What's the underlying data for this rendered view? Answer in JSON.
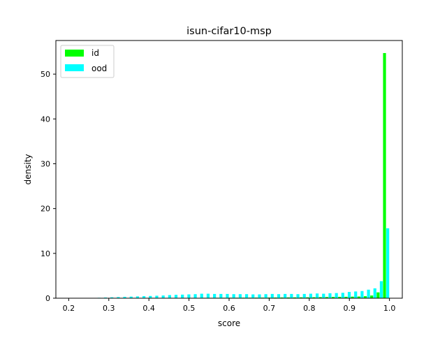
{
  "chart_data": {
    "type": "bar",
    "title": "isun-cifar10-msp",
    "xlabel": "score",
    "ylabel": "density",
    "xlim": [
      0.168,
      1.032
    ],
    "ylim": [
      0,
      57.5
    ],
    "xticks": [
      "0.2",
      "0.3",
      "0.4",
      "0.5",
      "0.6",
      "0.7",
      "0.8",
      "0.9",
      "1.0"
    ],
    "yticks": [
      "0",
      "10",
      "20",
      "30",
      "40",
      "50"
    ],
    "grid": false,
    "legend_position": "upper-left",
    "bin_edges": [
      0.2,
      0.216,
      0.232,
      0.248,
      0.264,
      0.28,
      0.296,
      0.312,
      0.328,
      0.344,
      0.36,
      0.376,
      0.392,
      0.408,
      0.424,
      0.44,
      0.456,
      0.472,
      0.488,
      0.504,
      0.52,
      0.536,
      0.552,
      0.568,
      0.584,
      0.6,
      0.616,
      0.632,
      0.648,
      0.664,
      0.68,
      0.696,
      0.712,
      0.728,
      0.744,
      0.76,
      0.776,
      0.792,
      0.808,
      0.824,
      0.84,
      0.856,
      0.872,
      0.888,
      0.904,
      0.92,
      0.936,
      0.952,
      0.968,
      0.984,
      1.0
    ],
    "series": [
      {
        "name": "id",
        "color": "#00ff00",
        "values": [
          0,
          0,
          0,
          0,
          0,
          0,
          0.01,
          0.01,
          0.02,
          0.02,
          0.03,
          0.03,
          0.04,
          0.04,
          0.05,
          0.05,
          0.06,
          0.06,
          0.07,
          0.08,
          0.08,
          0.09,
          0.09,
          0.1,
          0.1,
          0.11,
          0.11,
          0.12,
          0.12,
          0.13,
          0.13,
          0.14,
          0.15,
          0.16,
          0.17,
          0.18,
          0.19,
          0.2,
          0.22,
          0.24,
          0.26,
          0.28,
          0.3,
          0.32,
          0.35,
          0.38,
          0.45,
          0.6,
          1.3,
          54.7
        ]
      },
      {
        "name": "ood",
        "color": "#00ffff",
        "values": [
          0,
          0,
          0,
          0,
          0.1,
          0.15,
          0.2,
          0.25,
          0.3,
          0.35,
          0.4,
          0.45,
          0.5,
          0.55,
          0.6,
          0.7,
          0.75,
          0.8,
          0.85,
          0.9,
          1.0,
          1.0,
          0.95,
          0.95,
          0.95,
          0.9,
          0.9,
          0.9,
          0.85,
          0.85,
          0.9,
          0.95,
          0.9,
          0.95,
          0.95,
          0.9,
          0.95,
          1.0,
          1.05,
          1.0,
          1.1,
          1.15,
          1.2,
          1.4,
          1.5,
          1.6,
          1.9,
          2.2,
          3.8,
          15.6
        ]
      }
    ]
  }
}
